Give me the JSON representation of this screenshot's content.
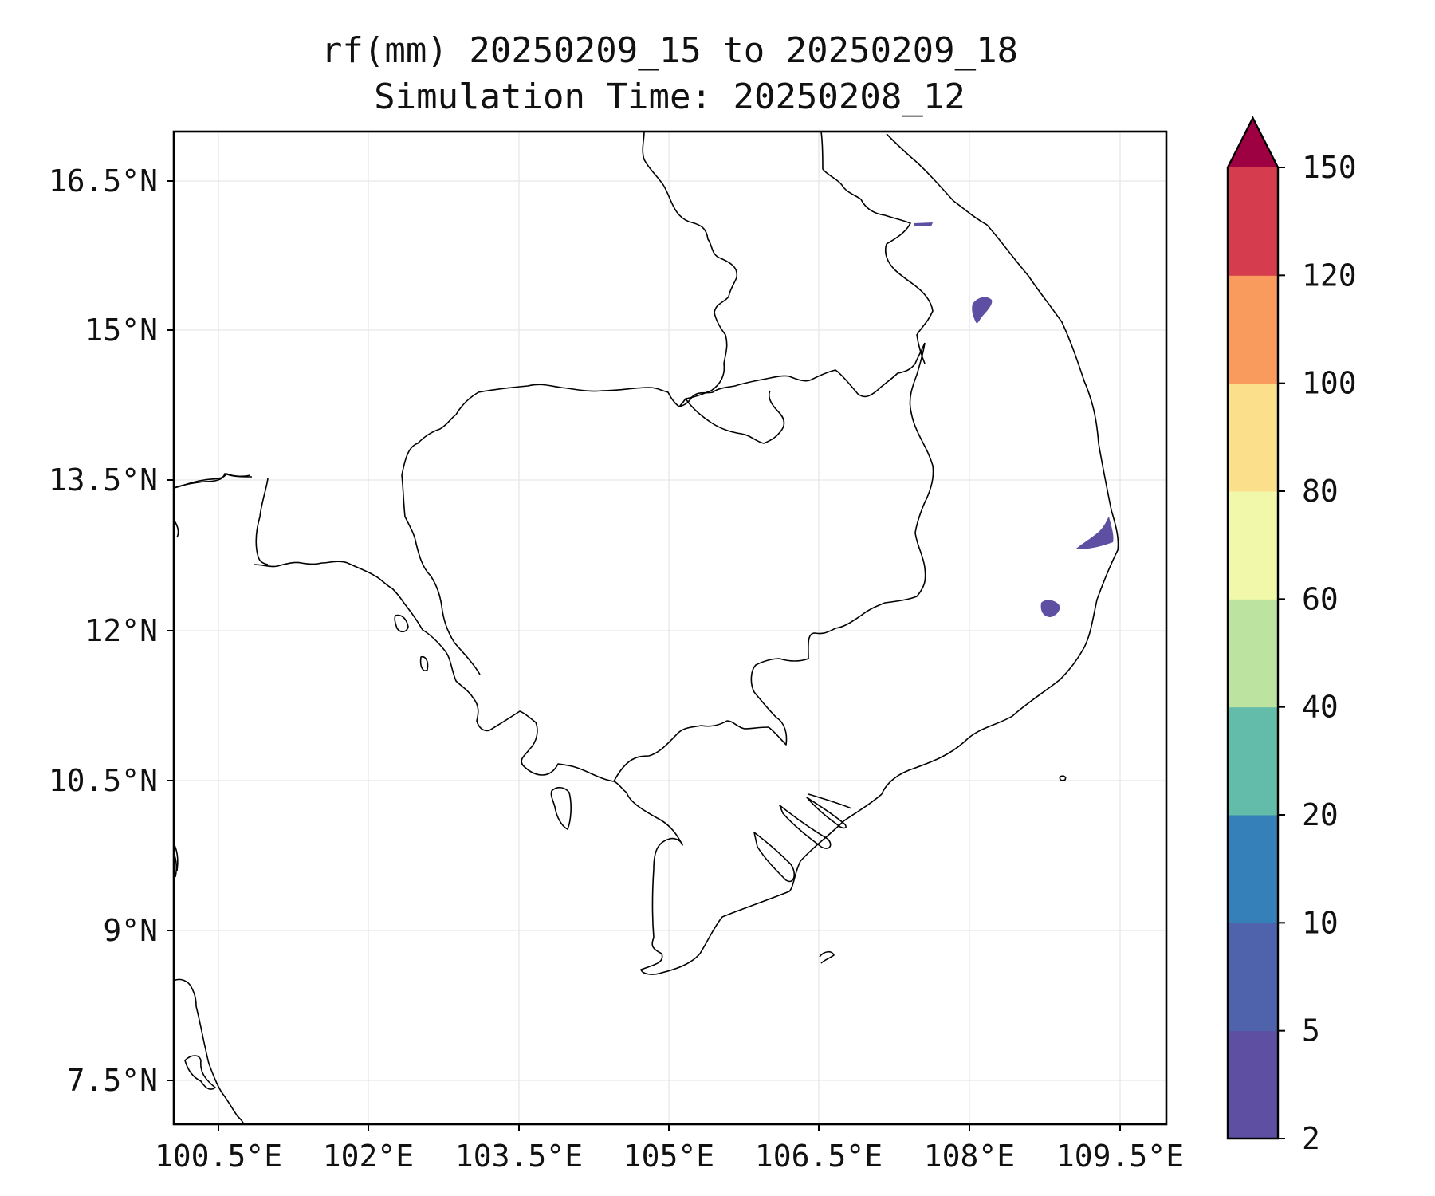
{
  "title": {
    "line1": "rf(mm) 20250209_15 to 20250209_18",
    "line2": "Simulation Time: 20250208_12"
  },
  "axes": {
    "lat_ticks": [
      "16.5°N",
      "15°N",
      "13.5°N",
      "12°N",
      "10.5°N",
      "9°N",
      "7.5°N"
    ],
    "lon_ticks": [
      "100.5°E",
      "102°E",
      "103.5°E",
      "105°E",
      "106.5°E",
      "108°E",
      "109.5°E"
    ],
    "grid": true
  },
  "colorbar": {
    "ticks": [
      "2",
      "5",
      "10",
      "20",
      "40",
      "60",
      "80",
      "100",
      "120",
      "150"
    ],
    "colors": [
      "#5e4fa2",
      "#4f63ad",
      "#3680b9",
      "#62bca9",
      "#bce4a0",
      "#f1f8a9",
      "#fbdf8b",
      "#f99b5c",
      "#d53d4f",
      "#9e0142"
    ],
    "extend": "max"
  },
  "rain_patches": [
    {
      "name": "rain-patch-1",
      "color": "#5e4fa2"
    },
    {
      "name": "rain-patch-2",
      "color": "#5e4fa2"
    },
    {
      "name": "rain-patch-3",
      "color": "#5e4fa2"
    },
    {
      "name": "rain-patch-4",
      "color": "#5e4fa2"
    }
  ]
}
